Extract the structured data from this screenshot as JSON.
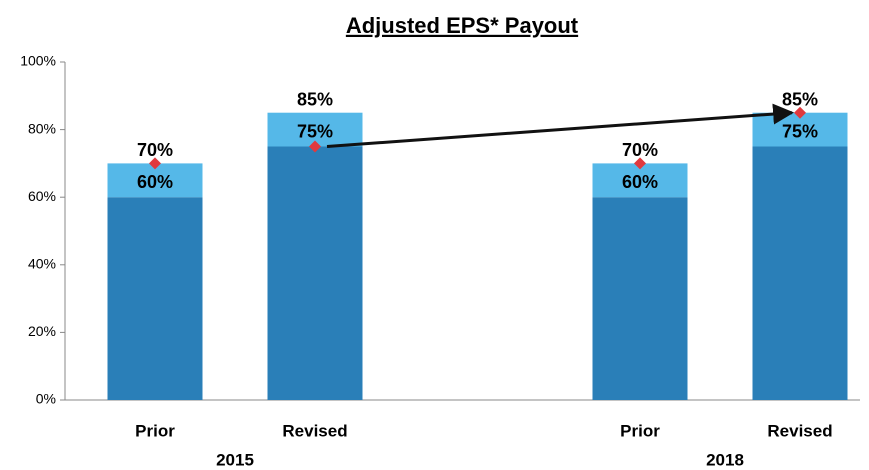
{
  "chart_data": {
    "type": "stacked_bar",
    "title": "Adjusted EPS* Payout",
    "categories": [
      "Prior",
      "Revised",
      "Prior",
      "Revised"
    ],
    "groups": [
      "2015",
      "2018"
    ],
    "series": [
      {
        "color": "#2a7fb8",
        "values": [
          60,
          75,
          60,
          75
        ],
        "value_labels": [
          "60%",
          "75%",
          "60%",
          "75%"
        ]
      },
      {
        "color": "#55b8e8",
        "values": [
          10,
          10,
          10,
          10
        ]
      }
    ],
    "totals": {
      "values": [
        70,
        85,
        70,
        85
      ],
      "value_labels": [
        "70%",
        "85%",
        "70%",
        "85%"
      ]
    },
    "markers": {
      "color": "#e0393e",
      "values": [
        70,
        75,
        70,
        85
      ]
    },
    "ylim": [
      0,
      100
    ],
    "yticks": [
      {
        "value": 0,
        "label": "0%"
      },
      {
        "value": 20,
        "label": "20%"
      },
      {
        "value": 40,
        "label": "40%"
      },
      {
        "value": 60,
        "label": "60%"
      },
      {
        "value": 80,
        "label": "80%"
      },
      {
        "value": 100,
        "label": "100%"
      }
    ],
    "grid": false
  }
}
